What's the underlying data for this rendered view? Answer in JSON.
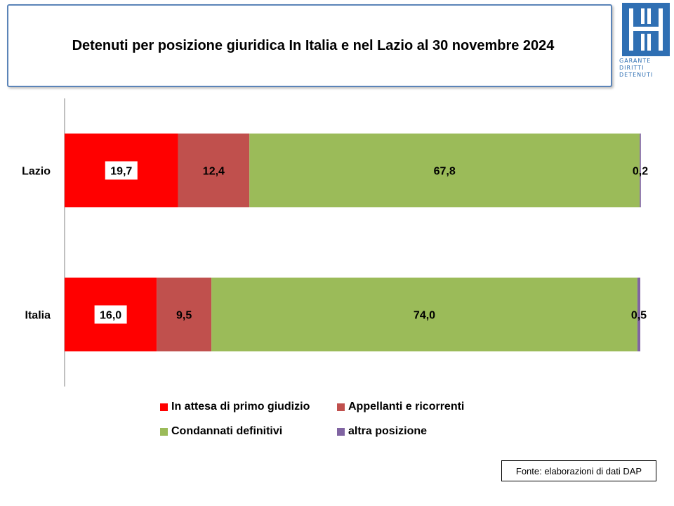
{
  "title": "Detenuti per posizione giuridica In Italia e nel Lazio al 30 novembre 2024",
  "logo": {
    "lines": [
      "GARANTE",
      "DIRITTI",
      "DETENUTI"
    ],
    "color": "#2f6fb3"
  },
  "source": "Fonte: elaborazioni di dati DAP",
  "chart_data": {
    "type": "bar",
    "orientation": "horizontal",
    "stacked": true,
    "percent_stacked": true,
    "categories": [
      "Lazio",
      "Italia"
    ],
    "series": [
      {
        "name": "In attesa di primo giudizio",
        "color": "#ff0000",
        "values": [
          19.7,
          16.0
        ],
        "labels": [
          "19,7",
          "16,0"
        ]
      },
      {
        "name": "Appellanti e ricorrenti",
        "color": "#c0504d",
        "values": [
          12.4,
          9.5
        ],
        "labels": [
          "12,4",
          "9,5"
        ]
      },
      {
        "name": "Condannati definitivi",
        "color": "#9bbb59",
        "values": [
          67.8,
          74.0
        ],
        "labels": [
          "67,8",
          "74,0"
        ]
      },
      {
        "name": "altra posizione",
        "color": "#8064a2",
        "values": [
          0.2,
          0.5
        ],
        "labels": [
          "0,2",
          "0,5"
        ]
      }
    ],
    "xlim": [
      0,
      100
    ],
    "grid": false,
    "legend_position": "bottom"
  }
}
